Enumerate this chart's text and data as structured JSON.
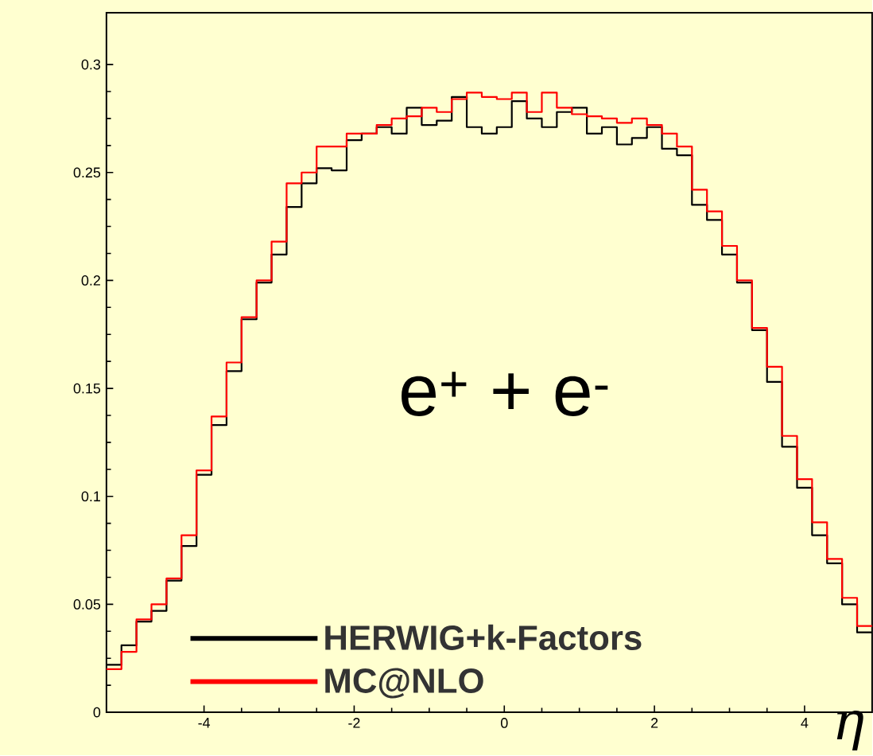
{
  "chart_data": {
    "type": "histogram",
    "xlabel": "η",
    "annotations": [
      "e$^{+}$ + e$^{-}$"
    ],
    "bins": [
      -5.3,
      -5.1,
      -4.9,
      -4.7,
      -4.5,
      -4.3,
      -4.1,
      -3.9,
      -3.7,
      -3.5,
      -3.3,
      -3.1,
      -2.9,
      -2.7,
      -2.5,
      -2.3,
      -2.1,
      -1.9,
      -1.7,
      -1.5,
      -1.3,
      -1.1,
      -0.9,
      -0.7,
      -0.5,
      -0.3,
      -0.1,
      0.1,
      0.3,
      0.5,
      0.7,
      0.9,
      1.1,
      1.3,
      1.5,
      1.7,
      1.9,
      2.1,
      2.3,
      2.5,
      2.7,
      2.9,
      3.1,
      3.3,
      3.5,
      3.7,
      3.9,
      4.1,
      4.3,
      4.5,
      4.7,
      4.9
    ],
    "series": [
      {
        "name": "HERWIG+k-Factors",
        "color": "#000000",
        "values": [
          0.022,
          0.031,
          0.042,
          0.047,
          0.061,
          0.077,
          0.11,
          0.133,
          0.158,
          0.182,
          0.199,
          0.212,
          0.234,
          0.245,
          0.252,
          0.251,
          0.265,
          0.268,
          0.271,
          0.268,
          0.28,
          0.272,
          0.274,
          0.285,
          0.271,
          0.268,
          0.271,
          0.283,
          0.275,
          0.271,
          0.278,
          0.28,
          0.268,
          0.271,
          0.263,
          0.266,
          0.271,
          0.261,
          0.258,
          0.235,
          0.228,
          0.212,
          0.199,
          0.177,
          0.153,
          0.123,
          0.104,
          0.082,
          0.069,
          0.05,
          0.037
        ]
      },
      {
        "name": "MC@NLO",
        "color": "#ff0000",
        "values": [
          0.02,
          0.028,
          0.043,
          0.05,
          0.062,
          0.082,
          0.112,
          0.137,
          0.162,
          0.183,
          0.2,
          0.218,
          0.245,
          0.25,
          0.262,
          0.262,
          0.268,
          0.268,
          0.272,
          0.275,
          0.276,
          0.28,
          0.278,
          0.284,
          0.287,
          0.285,
          0.284,
          0.287,
          0.278,
          0.287,
          0.28,
          0.277,
          0.276,
          0.275,
          0.273,
          0.275,
          0.272,
          0.268,
          0.262,
          0.242,
          0.232,
          0.216,
          0.2,
          0.178,
          0.16,
          0.128,
          0.108,
          0.088,
          0.071,
          0.053,
          0.04
        ]
      }
    ],
    "xlim": [
      -5.3,
      4.9
    ],
    "ylim": [
      0,
      0.324
    ],
    "xticks": [
      -4,
      -2,
      0,
      2,
      4
    ],
    "yticks": [
      0,
      0.05,
      0.1,
      0.15,
      0.2,
      0.25,
      0.3
    ],
    "legend": "bottom left",
    "grid": false
  }
}
